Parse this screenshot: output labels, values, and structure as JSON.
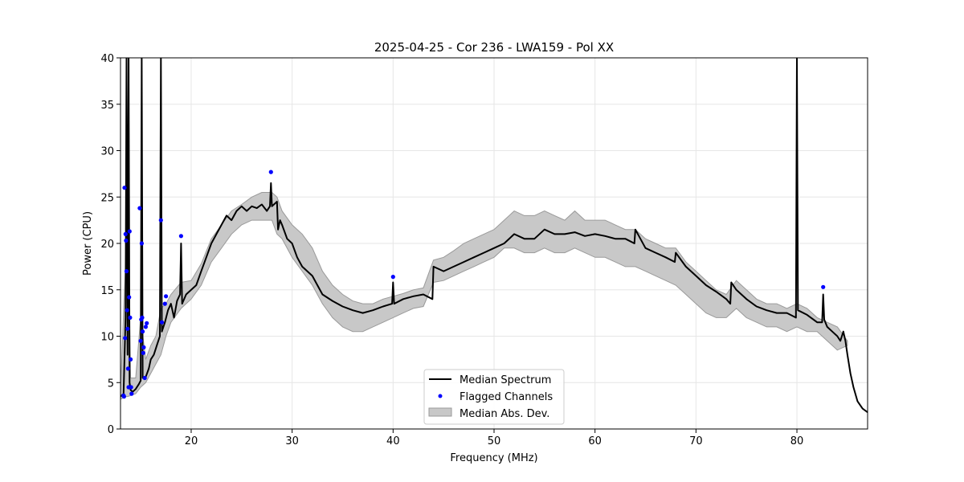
{
  "chart_data": {
    "type": "line",
    "title": "2025-04-25 - Cor 236 - LWA159 - Pol XX",
    "xlabel": "Frequency (MHz)",
    "ylabel": "Power (CPU)",
    "xlim": [
      13,
      87
    ],
    "ylim": [
      0,
      40
    ],
    "xticks": [
      20,
      30,
      40,
      50,
      60,
      70,
      80
    ],
    "yticks": [
      0,
      5,
      10,
      15,
      20,
      25,
      30,
      35,
      40
    ],
    "grid": true,
    "legend_position": "bottom-center",
    "colors": {
      "median": "#000000",
      "flagged": "#0000ff",
      "mad_fill": "#c8c8c8",
      "mad_edge": "#9a9a9a"
    },
    "legend": [
      {
        "label": "Median Spectrum",
        "kind": "line"
      },
      {
        "label": "Flagged Channels",
        "kind": "marker"
      },
      {
        "label": "Median Abs. Dev.",
        "kind": "patch"
      }
    ],
    "median_spectrum": {
      "x": [
        13.0,
        13.3,
        13.5,
        13.6,
        13.7,
        13.8,
        13.9,
        14.0,
        14.2,
        14.5,
        14.8,
        15.0,
        15.1,
        15.2,
        15.5,
        15.8,
        16.0,
        16.3,
        16.6,
        16.9,
        17.0,
        17.1,
        17.4,
        17.7,
        18.0,
        18.3,
        18.6,
        18.9,
        19.0,
        19.1,
        19.5,
        20.0,
        20.5,
        21.0,
        21.5,
        22.0,
        22.5,
        23.0,
        23.5,
        24.0,
        24.5,
        25.0,
        25.5,
        26.0,
        26.5,
        27.0,
        27.5,
        27.8,
        27.9,
        28.0,
        28.5,
        28.6,
        28.8,
        29.0,
        29.5,
        30.0,
        30.5,
        31.0,
        31.5,
        32.0,
        32.5,
        33.0,
        34.0,
        35.0,
        36.0,
        37.0,
        38.0,
        39.0,
        39.9,
        40.0,
        40.1,
        41.0,
        42.0,
        43.0,
        43.9,
        44.0,
        45.0,
        46.0,
        47.0,
        48.0,
        49.0,
        50.0,
        51.0,
        52.0,
        53.0,
        54.0,
        55.0,
        56.0,
        57.0,
        58.0,
        59.0,
        60.0,
        61.0,
        62.0,
        63.0,
        63.9,
        64.0,
        65.0,
        66.0,
        67.0,
        67.9,
        68.0,
        69.0,
        70.0,
        71.0,
        72.0,
        73.0,
        73.4,
        73.5,
        74.0,
        75.0,
        76.0,
        77.0,
        78.0,
        79.0,
        79.9,
        80.0,
        80.1,
        81.0,
        82.0,
        82.5,
        82.6,
        82.7,
        83.0,
        83.5,
        84.0,
        84.3,
        84.6,
        84.8,
        85.0,
        85.3,
        85.6,
        86.0,
        86.5,
        87.0
      ],
      "y": [
        3.5,
        3.8,
        12.0,
        40.0,
        8.0,
        40.0,
        5.0,
        4.2,
        4.0,
        4.3,
        4.8,
        5.2,
        40.0,
        5.5,
        5.6,
        6.5,
        7.5,
        8.0,
        9.0,
        10.0,
        40.0,
        10.5,
        11.5,
        12.8,
        13.5,
        12.0,
        13.8,
        14.5,
        20.0,
        13.5,
        14.5,
        15.0,
        15.5,
        17.0,
        18.5,
        20.0,
        21.0,
        22.0,
        23.0,
        22.5,
        23.5,
        24.0,
        23.5,
        24.0,
        23.8,
        24.2,
        23.5,
        24.0,
        26.5,
        24.0,
        24.5,
        21.5,
        22.5,
        22.0,
        20.5,
        20.0,
        18.5,
        17.5,
        17.0,
        16.5,
        15.5,
        14.5,
        13.8,
        13.2,
        12.8,
        12.5,
        12.8,
        13.2,
        13.5,
        15.8,
        13.5,
        14.0,
        14.3,
        14.5,
        14.0,
        17.5,
        17.0,
        17.5,
        18.0,
        18.5,
        19.0,
        19.5,
        20.0,
        21.0,
        20.5,
        20.5,
        21.5,
        21.0,
        21.0,
        21.2,
        20.8,
        21.0,
        20.8,
        20.5,
        20.5,
        20.0,
        21.5,
        19.5,
        19.0,
        18.5,
        18.0,
        19.0,
        17.5,
        16.5,
        15.5,
        14.8,
        14.0,
        13.5,
        15.8,
        15.0,
        14.0,
        13.2,
        12.8,
        12.5,
        12.5,
        12.0,
        40.0,
        12.8,
        12.3,
        11.5,
        11.5,
        14.5,
        11.8,
        11.0,
        10.5,
        10.0,
        9.5,
        10.5,
        9.5,
        8.0,
        6.0,
        4.5,
        3.0,
        2.2,
        1.8
      ],
      "x_mad": [
        13.0,
        13.5,
        13.7,
        14.0,
        14.5,
        15.0,
        15.5,
        16.0,
        16.5,
        17.0,
        17.5,
        18.0,
        19.0,
        20.0,
        21.0,
        22.0,
        23.0,
        24.0,
        25.0,
        26.0,
        27.0,
        28.0,
        28.5,
        29.0,
        30.0,
        31.0,
        32.0,
        33.0,
        34.0,
        35.0,
        36.0,
        37.0,
        38.0,
        39.0,
        40.0,
        41.0,
        42.0,
        43.0,
        44.0,
        45.0,
        46.0,
        47.0,
        48.0,
        49.0,
        50.0,
        51.0,
        52.0,
        53.0,
        54.0,
        55.0,
        56.0,
        57.0,
        58.0,
        59.0,
        60.0,
        61.0,
        62.0,
        63.0,
        64.0,
        65.0,
        66.0,
        67.0,
        68.0,
        69.0,
        70.0,
        71.0,
        72.0,
        73.0,
        74.0,
        75.0,
        76.0,
        77.0,
        78.0,
        79.0,
        80.0,
        81.0,
        82.0,
        83.0,
        84.0,
        85.0
      ],
      "mad_upper": [
        4.0,
        18.0,
        25.0,
        5.5,
        5.5,
        12.0,
        7.5,
        9.0,
        10.0,
        13.0,
        13.5,
        14.5,
        15.8,
        16.0,
        17.8,
        20.5,
        22.0,
        23.5,
        24.2,
        25.0,
        25.5,
        25.5,
        25.0,
        23.5,
        22.0,
        21.0,
        19.5,
        17.0,
        15.5,
        14.5,
        13.8,
        13.5,
        13.5,
        14.0,
        14.3,
        14.6,
        15.0,
        15.2,
        18.2,
        18.5,
        19.2,
        20.0,
        20.5,
        21.0,
        21.5,
        22.5,
        23.5,
        23.0,
        23.0,
        23.5,
        23.0,
        22.5,
        23.5,
        22.5,
        22.5,
        22.5,
        22.0,
        21.5,
        21.5,
        20.5,
        20.0,
        19.5,
        19.5,
        18.0,
        17.0,
        16.0,
        15.0,
        14.5,
        16.0,
        15.0,
        14.0,
        13.5,
        13.5,
        13.0,
        13.5,
        13.0,
        12.0,
        11.5,
        11.0,
        9.5
      ],
      "mad_lower": [
        3.2,
        3.5,
        3.5,
        3.6,
        3.8,
        4.5,
        5.0,
        6.0,
        7.0,
        8.0,
        10.0,
        11.5,
        13.0,
        14.0,
        15.5,
        18.0,
        19.5,
        21.0,
        22.0,
        22.5,
        22.5,
        22.5,
        21.0,
        20.5,
        18.5,
        17.0,
        15.5,
        13.5,
        12.0,
        11.0,
        10.5,
        10.5,
        11.0,
        11.5,
        12.0,
        12.5,
        13.0,
        13.2,
        15.8,
        16.0,
        16.5,
        17.0,
        17.5,
        18.0,
        18.5,
        19.5,
        19.5,
        19.0,
        19.0,
        19.5,
        19.0,
        19.0,
        19.5,
        19.0,
        18.5,
        18.5,
        18.0,
        17.5,
        17.5,
        17.0,
        16.5,
        16.0,
        15.5,
        14.5,
        13.5,
        12.5,
        12.0,
        12.0,
        13.0,
        12.0,
        11.5,
        11.0,
        11.0,
        10.5,
        11.0,
        10.5,
        10.5,
        9.5,
        8.5,
        9.0
      ]
    },
    "flagged_channels": {
      "x": [
        13.3,
        13.35,
        13.4,
        13.45,
        13.5,
        13.55,
        13.6,
        13.65,
        13.7,
        13.75,
        13.8,
        13.85,
        13.9,
        13.95,
        14.0,
        14.05,
        14.1,
        14.9,
        15.0,
        15.05,
        15.1,
        15.15,
        15.2,
        15.25,
        15.3,
        15.4,
        15.5,
        15.6,
        17.0,
        17.1,
        17.4,
        17.5,
        19.0,
        27.9,
        40.0,
        82.6
      ],
      "y": [
        3.6,
        3.5,
        26.0,
        9.8,
        21.0,
        20.3,
        17.0,
        12.8,
        10.8,
        6.5,
        4.5,
        14.2,
        21.3,
        12.0,
        7.5,
        4.5,
        3.8,
        23.8,
        9.5,
        11.8,
        20.0,
        12.0,
        10.5,
        8.2,
        8.8,
        5.5,
        11.0,
        11.4,
        22.5,
        11.5,
        13.5,
        14.3,
        20.8,
        27.7,
        16.4,
        15.3
      ]
    }
  }
}
